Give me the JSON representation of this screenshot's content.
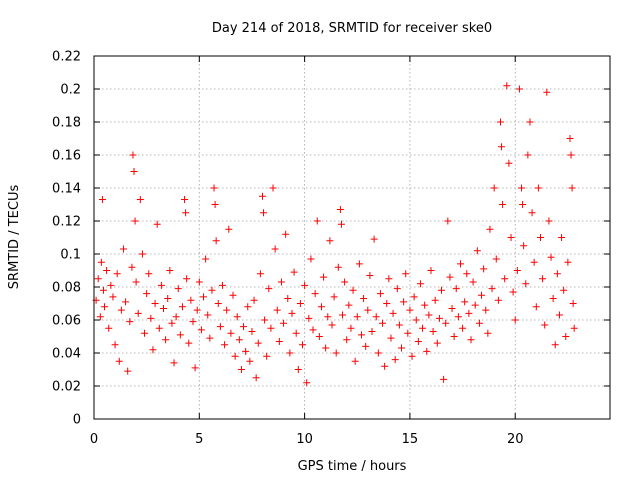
{
  "chart_data": {
    "type": "scatter",
    "title": "Day 214 of 2018, SRMTID for receiver ske0",
    "xlabel": "GPS time / hours",
    "ylabel": "SRMTID / TECUs",
    "xlim": [
      0,
      24.5
    ],
    "ylim": [
      0,
      0.22
    ],
    "xticks": [
      0,
      5,
      10,
      15,
      20
    ],
    "xtick_labels": [
      "0",
      "5",
      "10",
      "15",
      "20"
    ],
    "yticks": [
      0,
      0.02,
      0.04,
      0.06,
      0.08,
      0.1,
      0.12,
      0.14,
      0.16,
      0.18,
      0.2,
      0.22
    ],
    "ytick_labels": [
      "0",
      "0.02",
      "0.04",
      "0.06",
      "0.08",
      "0.1",
      "0.12",
      "0.14",
      "0.16",
      "0.18",
      "0.2",
      "0.22"
    ],
    "grid": true,
    "marker": "plus",
    "color": "#ff0000",
    "series": [
      {
        "name": "SRMTID",
        "points": [
          [
            0.1,
            0.072
          ],
          [
            0.2,
            0.085
          ],
          [
            0.3,
            0.062
          ],
          [
            0.35,
            0.095
          ],
          [
            0.4,
            0.133
          ],
          [
            0.45,
            0.078
          ],
          [
            0.5,
            0.068
          ],
          [
            0.6,
            0.09
          ],
          [
            0.7,
            0.055
          ],
          [
            0.8,
            0.081
          ],
          [
            0.9,
            0.074
          ],
          [
            1.0,
            0.045
          ],
          [
            1.1,
            0.088
          ],
          [
            1.2,
            0.035
          ],
          [
            1.3,
            0.066
          ],
          [
            1.4,
            0.103
          ],
          [
            1.5,
            0.071
          ],
          [
            1.6,
            0.029
          ],
          [
            1.7,
            0.059
          ],
          [
            1.8,
            0.092
          ],
          [
            1.85,
            0.16
          ],
          [
            1.9,
            0.15
          ],
          [
            1.95,
            0.12
          ],
          [
            2.0,
            0.083
          ],
          [
            2.1,
            0.064
          ],
          [
            2.2,
            0.133
          ],
          [
            2.3,
            0.1
          ],
          [
            2.4,
            0.052
          ],
          [
            2.5,
            0.076
          ],
          [
            2.6,
            0.088
          ],
          [
            2.7,
            0.061
          ],
          [
            2.8,
            0.042
          ],
          [
            2.9,
            0.07
          ],
          [
            3.0,
            0.118
          ],
          [
            3.1,
            0.055
          ],
          [
            3.2,
            0.081
          ],
          [
            3.3,
            0.067
          ],
          [
            3.4,
            0.048
          ],
          [
            3.5,
            0.073
          ],
          [
            3.6,
            0.09
          ],
          [
            3.7,
            0.058
          ],
          [
            3.8,
            0.034
          ],
          [
            3.9,
            0.062
          ],
          [
            4.0,
            0.079
          ],
          [
            4.1,
            0.051
          ],
          [
            4.2,
            0.068
          ],
          [
            4.3,
            0.133
          ],
          [
            4.35,
            0.125
          ],
          [
            4.4,
            0.085
          ],
          [
            4.5,
            0.046
          ],
          [
            4.6,
            0.072
          ],
          [
            4.7,
            0.059
          ],
          [
            4.8,
            0.031
          ],
          [
            4.9,
            0.066
          ],
          [
            5.0,
            0.083
          ],
          [
            5.1,
            0.054
          ],
          [
            5.2,
            0.074
          ],
          [
            5.3,
            0.097
          ],
          [
            5.4,
            0.063
          ],
          [
            5.5,
            0.049
          ],
          [
            5.6,
            0.078
          ],
          [
            5.7,
            0.14
          ],
          [
            5.75,
            0.13
          ],
          [
            5.8,
            0.108
          ],
          [
            5.9,
            0.07
          ],
          [
            6.0,
            0.056
          ],
          [
            6.1,
            0.081
          ],
          [
            6.2,
            0.045
          ],
          [
            6.3,
            0.066
          ],
          [
            6.4,
            0.115
          ],
          [
            6.5,
            0.052
          ],
          [
            6.6,
            0.075
          ],
          [
            6.7,
            0.038
          ],
          [
            6.8,
            0.062
          ],
          [
            6.9,
            0.048
          ],
          [
            7.0,
            0.03
          ],
          [
            7.1,
            0.056
          ],
          [
            7.2,
            0.041
          ],
          [
            7.3,
            0.068
          ],
          [
            7.4,
            0.035
          ],
          [
            7.5,
            0.053
          ],
          [
            7.6,
            0.072
          ],
          [
            7.7,
            0.025
          ],
          [
            7.8,
            0.046
          ],
          [
            7.9,
            0.088
          ],
          [
            8.0,
            0.135
          ],
          [
            8.05,
            0.125
          ],
          [
            8.1,
            0.06
          ],
          [
            8.2,
            0.038
          ],
          [
            8.3,
            0.079
          ],
          [
            8.4,
            0.055
          ],
          [
            8.5,
            0.14
          ],
          [
            8.6,
            0.103
          ],
          [
            8.7,
            0.066
          ],
          [
            8.8,
            0.047
          ],
          [
            8.9,
            0.083
          ],
          [
            9.0,
            0.058
          ],
          [
            9.1,
            0.112
          ],
          [
            9.2,
            0.073
          ],
          [
            9.3,
            0.04
          ],
          [
            9.4,
            0.064
          ],
          [
            9.5,
            0.089
          ],
          [
            9.6,
            0.052
          ],
          [
            9.7,
            0.03
          ],
          [
            9.8,
            0.07
          ],
          [
            9.9,
            0.045
          ],
          [
            10.0,
            0.081
          ],
          [
            10.1,
            0.022
          ],
          [
            10.2,
            0.061
          ],
          [
            10.3,
            0.097
          ],
          [
            10.4,
            0.054
          ],
          [
            10.5,
            0.076
          ],
          [
            10.6,
            0.12
          ],
          [
            10.7,
            0.05
          ],
          [
            10.8,
            0.068
          ],
          [
            10.9,
            0.086
          ],
          [
            11.0,
            0.043
          ],
          [
            11.1,
            0.062
          ],
          [
            11.2,
            0.108
          ],
          [
            11.3,
            0.057
          ],
          [
            11.4,
            0.074
          ],
          [
            11.5,
            0.04
          ],
          [
            11.6,
            0.092
          ],
          [
            11.7,
            0.127
          ],
          [
            11.75,
            0.118
          ],
          [
            11.8,
            0.063
          ],
          [
            11.9,
            0.083
          ],
          [
            12.0,
            0.048
          ],
          [
            12.1,
            0.069
          ],
          [
            12.2,
            0.055
          ],
          [
            12.3,
            0.078
          ],
          [
            12.4,
            0.035
          ],
          [
            12.5,
            0.062
          ],
          [
            12.6,
            0.094
          ],
          [
            12.7,
            0.051
          ],
          [
            12.8,
            0.073
          ],
          [
            12.9,
            0.044
          ],
          [
            13.0,
            0.066
          ],
          [
            13.1,
            0.087
          ],
          [
            13.2,
            0.053
          ],
          [
            13.3,
            0.109
          ],
          [
            13.4,
            0.062
          ],
          [
            13.5,
            0.04
          ],
          [
            13.6,
            0.076
          ],
          [
            13.7,
            0.058
          ],
          [
            13.8,
            0.032
          ],
          [
            13.9,
            0.07
          ],
          [
            14.0,
            0.085
          ],
          [
            14.1,
            0.049
          ],
          [
            14.2,
            0.064
          ],
          [
            14.3,
            0.036
          ],
          [
            14.4,
            0.079
          ],
          [
            14.5,
            0.057
          ],
          [
            14.6,
            0.043
          ],
          [
            14.7,
            0.071
          ],
          [
            14.8,
            0.088
          ],
          [
            14.9,
            0.052
          ],
          [
            15.0,
            0.066
          ],
          [
            15.1,
            0.038
          ],
          [
            15.2,
            0.074
          ],
          [
            15.3,
            0.06
          ],
          [
            15.4,
            0.047
          ],
          [
            15.5,
            0.082
          ],
          [
            15.6,
            0.055
          ],
          [
            15.7,
            0.069
          ],
          [
            15.8,
            0.041
          ],
          [
            15.9,
            0.063
          ],
          [
            16.0,
            0.09
          ],
          [
            16.1,
            0.053
          ],
          [
            16.2,
            0.072
          ],
          [
            16.3,
            0.046
          ],
          [
            16.4,
            0.061
          ],
          [
            16.5,
            0.078
          ],
          [
            16.6,
            0.024
          ],
          [
            16.7,
            0.058
          ],
          [
            16.8,
            0.12
          ],
          [
            16.9,
            0.086
          ],
          [
            17.0,
            0.067
          ],
          [
            17.1,
            0.05
          ],
          [
            17.2,
            0.079
          ],
          [
            17.3,
            0.062
          ],
          [
            17.4,
            0.094
          ],
          [
            17.5,
            0.055
          ],
          [
            17.6,
            0.071
          ],
          [
            17.7,
            0.088
          ],
          [
            17.8,
            0.064
          ],
          [
            17.9,
            0.048
          ],
          [
            18.0,
            0.083
          ],
          [
            18.1,
            0.069
          ],
          [
            18.2,
            0.102
          ],
          [
            18.3,
            0.058
          ],
          [
            18.4,
            0.075
          ],
          [
            18.5,
            0.091
          ],
          [
            18.6,
            0.066
          ],
          [
            18.7,
            0.052
          ],
          [
            18.8,
            0.115
          ],
          [
            18.9,
            0.079
          ],
          [
            19.0,
            0.14
          ],
          [
            19.1,
            0.097
          ],
          [
            19.2,
            0.072
          ],
          [
            19.3,
            0.18
          ],
          [
            19.35,
            0.165
          ],
          [
            19.4,
            0.13
          ],
          [
            19.5,
            0.085
          ],
          [
            19.6,
            0.202
          ],
          [
            19.7,
            0.155
          ],
          [
            19.8,
            0.11
          ],
          [
            19.9,
            0.077
          ],
          [
            20.0,
            0.06
          ],
          [
            20.1,
            0.09
          ],
          [
            20.2,
            0.2
          ],
          [
            20.3,
            0.14
          ],
          [
            20.35,
            0.13
          ],
          [
            20.4,
            0.105
          ],
          [
            20.5,
            0.082
          ],
          [
            20.6,
            0.16
          ],
          [
            20.7,
            0.18
          ],
          [
            20.8,
            0.125
          ],
          [
            20.9,
            0.095
          ],
          [
            21.0,
            0.068
          ],
          [
            21.1,
            0.14
          ],
          [
            21.2,
            0.11
          ],
          [
            21.3,
            0.085
          ],
          [
            21.4,
            0.057
          ],
          [
            21.5,
            0.198
          ],
          [
            21.6,
            0.12
          ],
          [
            21.7,
            0.098
          ],
          [
            21.8,
            0.073
          ],
          [
            21.9,
            0.045
          ],
          [
            22.0,
            0.088
          ],
          [
            22.1,
            0.063
          ],
          [
            22.2,
            0.11
          ],
          [
            22.3,
            0.078
          ],
          [
            22.4,
            0.05
          ],
          [
            22.5,
            0.095
          ],
          [
            22.6,
            0.17
          ],
          [
            22.65,
            0.16
          ],
          [
            22.7,
            0.14
          ],
          [
            22.75,
            0.07
          ],
          [
            22.8,
            0.055
          ]
        ]
      }
    ]
  }
}
